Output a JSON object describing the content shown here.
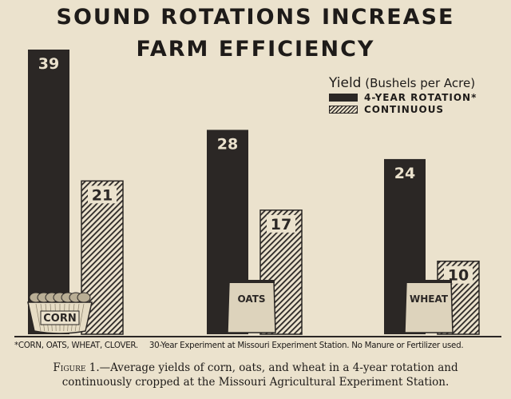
{
  "title": {
    "line1": "SOUND ROTATIONS INCREASE",
    "line2": "FARM EFFICIENCY"
  },
  "legend": {
    "heading": "Yield",
    "unit": "(Bushels per Acre)",
    "items": [
      {
        "label": "4-YEAR ROTATION*",
        "style": "solid",
        "color": "#2b2725"
      },
      {
        "label": "CONTINUOUS",
        "style": "hatched",
        "color": "#2b2725"
      }
    ]
  },
  "chart_data": {
    "type": "bar",
    "categories": [
      "CORN",
      "OATS",
      "WHEAT"
    ],
    "series": [
      {
        "name": "4-YEAR ROTATION*",
        "values": [
          39,
          28,
          24
        ]
      },
      {
        "name": "CONTINUOUS",
        "values": [
          21,
          17,
          10
        ]
      }
    ],
    "title": "SOUND ROTATIONS INCREASE FARM EFFICIENCY",
    "ylabel": "Yield (Bushels per Acre)",
    "ylim": [
      0,
      39
    ],
    "grid": false,
    "legend_position": "top-right"
  },
  "footnote": {
    "rotation": "*CORN, OATS, WHEAT, CLOVER.",
    "source": "30-Year Experiment at Missouri Experiment Station. No Manure or Fertilizer used."
  },
  "caption": {
    "figure": "Figure 1.",
    "text1": "—Average yields of corn, oats, and wheat in a 4-year rotation and",
    "text2": "continuously cropped at the Missouri Agricultural Experiment Station."
  }
}
